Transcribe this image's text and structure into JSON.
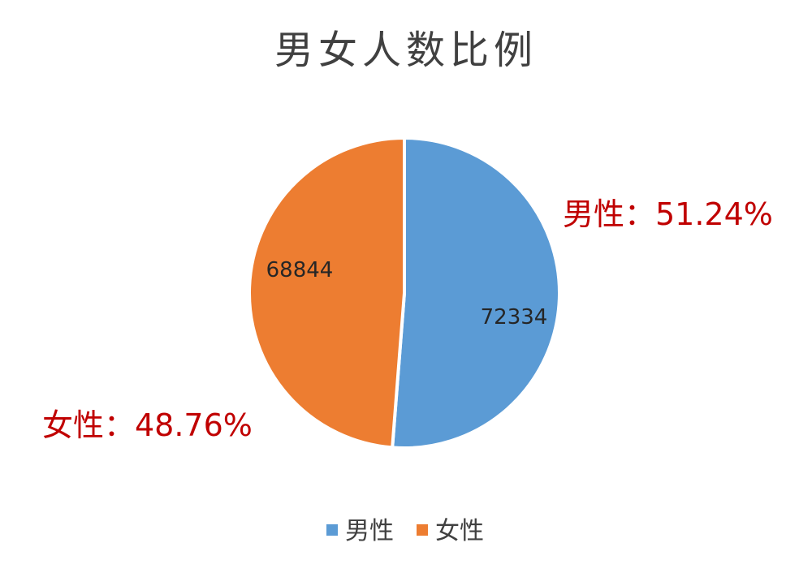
{
  "chart_data": {
    "type": "pie",
    "title": "男女人数比例",
    "categories": [
      "男性",
      "女性"
    ],
    "values": [
      72334,
      68844
    ],
    "percent_labels": [
      "男性：51.24%",
      "女性：48.76%"
    ],
    "colors": [
      "#5b9bd5",
      "#ed7d31"
    ],
    "legend_position": "bottom",
    "start_angle": "12 o'clock",
    "direction": "clockwise"
  }
}
